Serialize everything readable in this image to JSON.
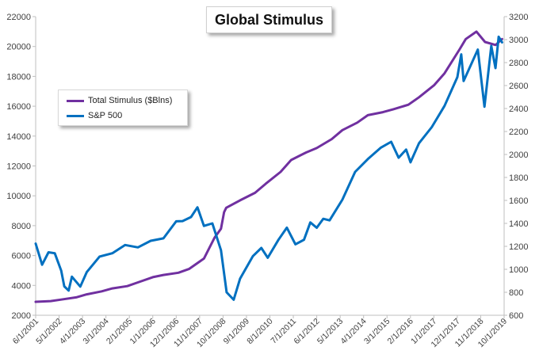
{
  "chart_data": {
    "type": "line",
    "title": "Global Stimulus",
    "x_tick_labels": [
      "6/1/2001",
      "5/1/2002",
      "4/1/2003",
      "3/1/2004",
      "2/1/2005",
      "1/1/2006",
      "12/1/2006",
      "11/1/2007",
      "10/1/2008",
      "9/1/2009",
      "8/1/2010",
      "7/1/2011",
      "6/1/2012",
      "5/1/2013",
      "4/1/2014",
      "3/1/2015",
      "2/1/2016",
      "1/1/2017",
      "12/1/2017",
      "11/1/2018",
      "10/1/2019"
    ],
    "y_left": {
      "ticks": [
        2000,
        4000,
        6000,
        8000,
        10000,
        12000,
        14000,
        16000,
        18000,
        20000,
        22000
      ],
      "ylim": [
        2000,
        22000
      ]
    },
    "y_right": {
      "ticks": [
        600,
        800,
        1000,
        1200,
        1400,
        1600,
        1800,
        2000,
        2200,
        2400,
        2600,
        2800,
        3000,
        3200
      ],
      "ylim": [
        600,
        3200
      ]
    },
    "grid": false,
    "legend_position": "upper-left",
    "series": [
      {
        "name": "Total Stimulus ($Blns)",
        "axis": "left",
        "color": "#7030a0",
        "x": [
          "2001-06-01",
          "2002-01-01",
          "2002-06-01",
          "2003-01-01",
          "2003-06-01",
          "2004-01-01",
          "2004-06-01",
          "2005-01-01",
          "2005-06-01",
          "2006-01-01",
          "2006-06-01",
          "2007-01-01",
          "2007-06-01",
          "2008-01-01",
          "2008-06-01",
          "2008-09-01",
          "2008-10-15",
          "2008-11-15",
          "2009-06-01",
          "2010-01-01",
          "2010-06-01",
          "2011-01-01",
          "2011-06-01",
          "2012-01-01",
          "2012-06-01",
          "2013-01-01",
          "2013-06-01",
          "2014-01-01",
          "2014-06-01",
          "2015-01-01",
          "2015-06-01",
          "2016-01-01",
          "2016-06-01",
          "2017-01-01",
          "2017-06-01",
          "2018-01-01",
          "2018-04-01",
          "2018-09-01",
          "2019-01-01",
          "2019-06-01",
          "2019-09-01"
        ],
        "y": [
          2900,
          2950,
          3050,
          3200,
          3400,
          3600,
          3800,
          3950,
          4200,
          4550,
          4700,
          4850,
          5100,
          5800,
          7200,
          7800,
          8900,
          9200,
          9700,
          10200,
          10800,
          11600,
          12400,
          12900,
          13200,
          13800,
          14400,
          14900,
          15400,
          15600,
          15800,
          16100,
          16600,
          17400,
          18200,
          19800,
          20500,
          21000,
          20300,
          20100,
          20500
        ]
      },
      {
        "name": "S&P 500",
        "axis": "right",
        "color": "#0070c0",
        "x": [
          "2001-06-01",
          "2001-09-01",
          "2001-12-01",
          "2002-03-01",
          "2002-06-01",
          "2002-07-15",
          "2002-09-15",
          "2002-11-01",
          "2003-03-01",
          "2003-06-01",
          "2003-12-01",
          "2004-06-01",
          "2004-12-01",
          "2005-06-01",
          "2005-12-01",
          "2006-06-01",
          "2006-12-01",
          "2007-03-01",
          "2007-07-01",
          "2007-10-01",
          "2008-01-01",
          "2008-05-01",
          "2008-09-01",
          "2008-11-20",
          "2009-03-01",
          "2009-06-01",
          "2009-12-01",
          "2010-04-01",
          "2010-07-01",
          "2010-12-01",
          "2011-04-01",
          "2011-08-01",
          "2011-12-01",
          "2012-03-01",
          "2012-06-01",
          "2012-09-01",
          "2012-12-01",
          "2013-06-01",
          "2013-12-01",
          "2014-06-01",
          "2014-12-01",
          "2015-05-01",
          "2015-08-15",
          "2015-12-01",
          "2016-02-01",
          "2016-06-01",
          "2016-12-01",
          "2017-06-01",
          "2017-12-01",
          "2018-01-26",
          "2018-03-01",
          "2018-09-20",
          "2018-12-24",
          "2019-04-01",
          "2019-05-31",
          "2019-07-15",
          "2019-09-01"
        ],
        "y": [
          1224,
          1040,
          1148,
          1140,
          989,
          852,
          815,
          936,
          850,
          975,
          1111,
          1140,
          1212,
          1191,
          1248,
          1270,
          1418,
          1420,
          1455,
          1540,
          1378,
          1400,
          1166,
          800,
          735,
          919,
          1115,
          1186,
          1101,
          1257,
          1363,
          1218,
          1257,
          1408,
          1362,
          1440,
          1426,
          1606,
          1848,
          1960,
          2058,
          2110,
          1972,
          2043,
          1932,
          2098,
          2238,
          2423,
          2673,
          2872,
          2640,
          2913,
          2416,
          2945,
          2752,
          3025,
          2976
        ]
      }
    ]
  }
}
